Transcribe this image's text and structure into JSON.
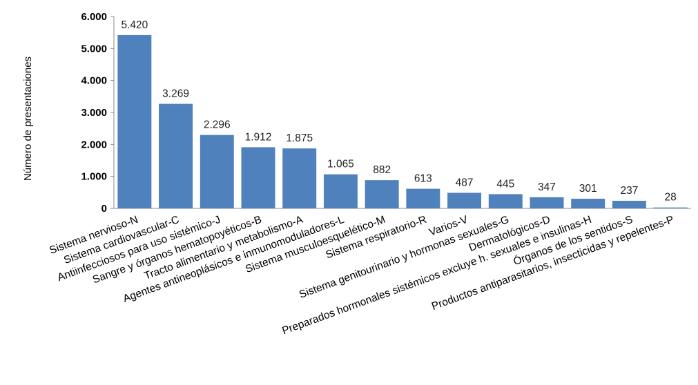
{
  "chart_data": {
    "type": "bar",
    "title": "",
    "xlabel": "",
    "ylabel": "Número de presentaciones",
    "ylim": [
      0,
      6000
    ],
    "yticks": [
      0,
      1000,
      2000,
      3000,
      4000,
      5000,
      6000
    ],
    "ytick_labels": [
      "0",
      "1.000",
      "2.000",
      "3.000",
      "4.000",
      "5.000",
      "6.000"
    ],
    "grid": false,
    "legend": "none",
    "bar_color": "#4F81BD",
    "categories": [
      "Sistema nervioso-N",
      "Sistema cardiovascular-C",
      "Antiinfecciosos para uso sistémico-J",
      "Sangre y órganos hematopoyéticos-B",
      "Tracto alimentario y metabolismo-A",
      "Agentes antineoplásicos e inmunomoduladores-L",
      "Sistema musculoesquelético-M",
      "Sistema respiratorio-R",
      "Varios-V",
      "Sistema genitourinario y hormonas sexuales-G",
      "Dermatológicos-D",
      "Preparados hormonales sistémicos excluye h. sexuales e insulinas-H",
      "Órganos de los sentidos-S",
      "Productos antiparasitarios, insecticidas y repelentes-P"
    ],
    "values": [
      5420,
      3269,
      2296,
      1912,
      1875,
      1065,
      882,
      613,
      487,
      445,
      347,
      301,
      237,
      28
    ],
    "data_labels": [
      "5.420",
      "3.269",
      "2.296",
      "1.912",
      "1.875",
      "1.065",
      "882",
      "613",
      "487",
      "445",
      "347",
      "301",
      "237",
      "28"
    ]
  }
}
